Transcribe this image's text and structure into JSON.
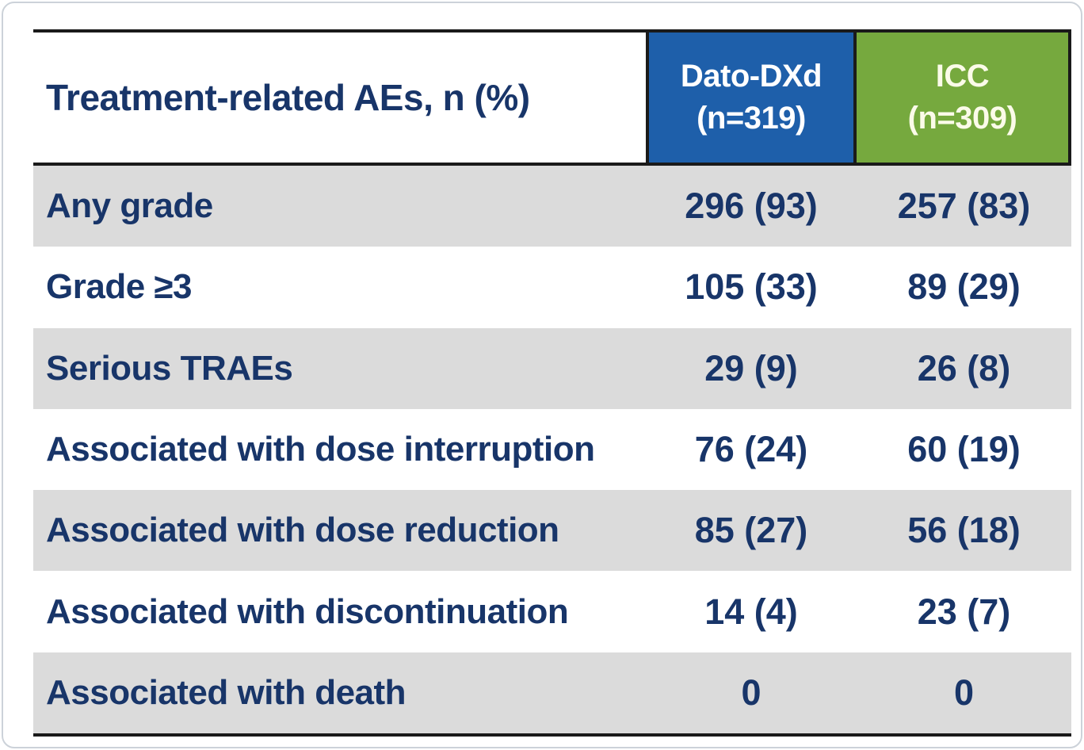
{
  "table": {
    "title": "Treatment-related AEs, n (%)",
    "columns": [
      {
        "name": "Dato-DXd",
        "n": "(n=319)",
        "color": "#1e5faa"
      },
      {
        "name": "ICC",
        "n": "(n=309)",
        "color": "#76a93e"
      }
    ],
    "rows": [
      {
        "label": "Any grade",
        "dato": "296 (93)",
        "icc": "257 (83)"
      },
      {
        "label": "Grade ≥3",
        "dato": "105 (33)",
        "icc": "89 (29)"
      },
      {
        "label": "Serious TRAEs",
        "dato": "29 (9)",
        "icc": "26 (8)"
      },
      {
        "label": "Associated with dose interruption",
        "dato": "76 (24)",
        "icc": "60 (19)"
      },
      {
        "label": "Associated with dose reduction",
        "dato": "85 (27)",
        "icc": "56 (18)"
      },
      {
        "label": "Associated with discontinuation",
        "dato": "14 (4)",
        "icc": "23 (7)"
      },
      {
        "label": "Associated with death",
        "dato": "0",
        "icc": "0"
      }
    ],
    "colors": {
      "row_stripe": "#dbdbdb",
      "text_navy": "#183569",
      "border_dark": "#1a1a1a",
      "dato_dxd_blue": "#1e5faa",
      "icc_green": "#76a93e"
    }
  },
  "chart_data": {
    "type": "table",
    "title": "Treatment-related AEs, n (%)",
    "columns": [
      "Treatment-related AEs, n (%)",
      "Dato-DXd (n=319)",
      "ICC (n=309)"
    ],
    "rows": [
      [
        "Any grade",
        "296 (93)",
        "257 (83)"
      ],
      [
        "Grade ≥3",
        "105 (33)",
        "89 (29)"
      ],
      [
        "Serious TRAEs",
        "29 (9)",
        "26 (8)"
      ],
      [
        "Associated with dose interruption",
        "76 (24)",
        "60 (19)"
      ],
      [
        "Associated with dose reduction",
        "85 (27)",
        "56 (18)"
      ],
      [
        "Associated with discontinuation",
        "14 (4)",
        "23 (7)"
      ],
      [
        "Associated with death",
        "0",
        "0"
      ]
    ]
  }
}
